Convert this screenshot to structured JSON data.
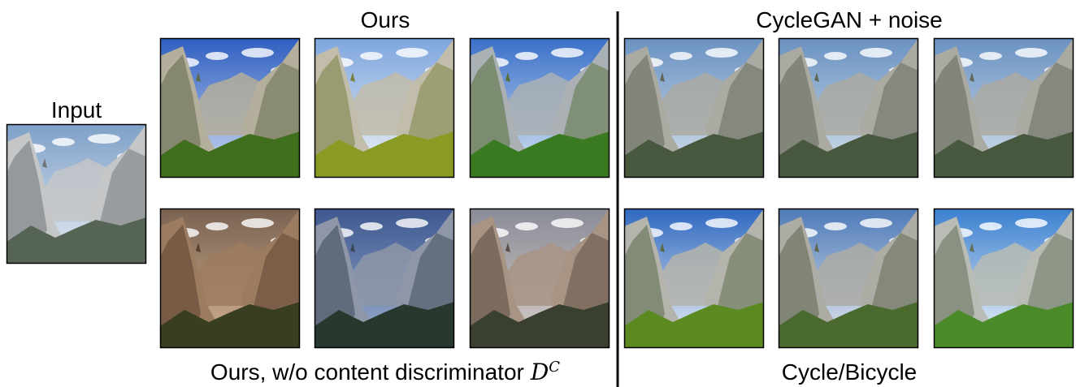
{
  "labels": {
    "input": "Input",
    "ours": "Ours",
    "cyclegan": "CycleGAN + noise",
    "ablation": {
      "text": "Ours, w/o content discriminator",
      "math": "D",
      "sup": "C"
    },
    "bicycle": "Cycle/Bicycle"
  }
}
